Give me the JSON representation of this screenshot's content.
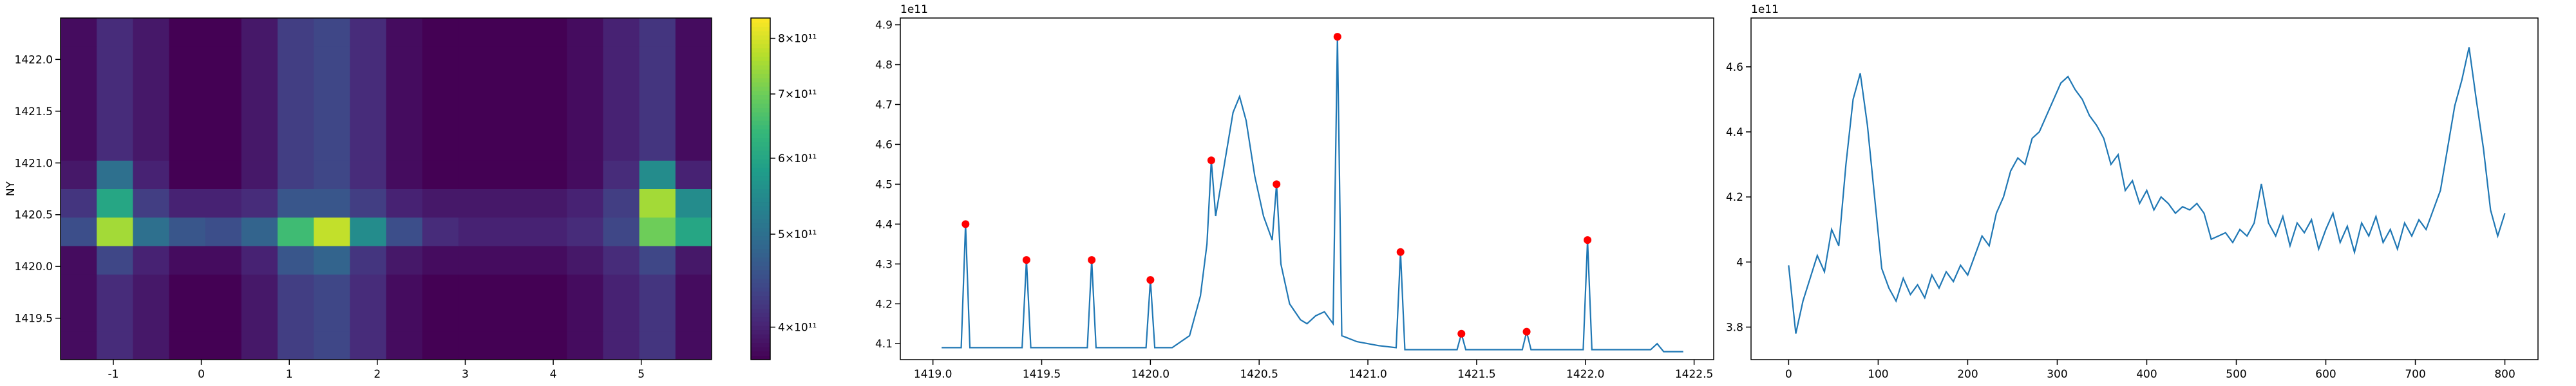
{
  "chart_data": [
    {
      "type": "heatmap",
      "ylabel": "NY",
      "xlim": [
        -1.6,
        5.8
      ],
      "ylim": [
        1419.1,
        1422.4
      ],
      "xticks": [
        -1,
        0,
        1,
        2,
        3,
        4,
        5
      ],
      "yticks": [
        {
          "value": 1419.5,
          "label": "1419.5"
        },
        {
          "value": 1420.0,
          "label": "1420.0"
        },
        {
          "value": 1420.5,
          "label": "1420.5"
        },
        {
          "value": 1421.0,
          "label": "1421.0"
        },
        {
          "value": 1421.5,
          "label": "1421.5"
        },
        {
          "value": 1422.0,
          "label": "1422.0"
        }
      ],
      "colormap": "viridis",
      "log_color": true,
      "clim": [
        370000000000.0,
        840000000000.0
      ],
      "cticks": [
        {
          "value": 400000000000.0,
          "label": "4×10¹¹"
        },
        {
          "value": 500000000000.0,
          "label": "5×10¹¹"
        },
        {
          "value": 600000000000.0,
          "label": "6×10¹¹"
        },
        {
          "value": 700000000000.0,
          "label": "7×10¹¹"
        },
        {
          "value": 800000000000.0,
          "label": "8×10¹¹"
        }
      ],
      "z": [
        [
          380000000000.0,
          410000000000.0,
          390000000000.0,
          370000000000.0,
          370000000000.0,
          390000000000.0,
          430000000000.0,
          440000000000.0,
          410000000000.0,
          380000000000.0,
          370000000000.0,
          370000000000.0,
          370000000000.0,
          370000000000.0,
          380000000000.0,
          400000000000.0,
          420000000000.0,
          380000000000.0
        ],
        [
          380000000000.0,
          410000000000.0,
          390000000000.0,
          370000000000.0,
          370000000000.0,
          390000000000.0,
          430000000000.0,
          440000000000.0,
          410000000000.0,
          380000000000.0,
          370000000000.0,
          370000000000.0,
          370000000000.0,
          370000000000.0,
          380000000000.0,
          400000000000.0,
          420000000000.0,
          380000000000.0
        ],
        [
          380000000000.0,
          410000000000.0,
          390000000000.0,
          370000000000.0,
          370000000000.0,
          390000000000.0,
          430000000000.0,
          440000000000.0,
          410000000000.0,
          380000000000.0,
          370000000000.0,
          370000000000.0,
          370000000000.0,
          370000000000.0,
          380000000000.0,
          400000000000.0,
          420000000000.0,
          380000000000.0
        ],
        [
          380000000000.0,
          440000000000.0,
          400000000000.0,
          380000000000.0,
          380000000000.0,
          400000000000.0,
          460000000000.0,
          480000000000.0,
          420000000000.0,
          390000000000.0,
          380000000000.0,
          380000000000.0,
          380000000000.0,
          380000000000.0,
          390000000000.0,
          410000000000.0,
          440000000000.0,
          390000000000.0
        ],
        [
          450000000000.0,
          750000000000.0,
          500000000000.0,
          460000000000.0,
          450000000000.0,
          480000000000.0,
          650000000000.0,
          780000000000.0,
          550000000000.0,
          450000000000.0,
          410000000000.0,
          400000000000.0,
          400000000000.0,
          400000000000.0,
          410000000000.0,
          440000000000.0,
          700000000000.0,
          600000000000.0
        ],
        [
          420000000000.0,
          600000000000.0,
          430000000000.0,
          400000000000.0,
          400000000000.0,
          410000000000.0,
          460000000000.0,
          460000000000.0,
          430000000000.0,
          400000000000.0,
          390000000000.0,
          390000000000.0,
          390000000000.0,
          390000000000.0,
          400000000000.0,
          430000000000.0,
          750000000000.0,
          550000000000.0
        ],
        [
          390000000000.0,
          500000000000.0,
          400000000000.0,
          370000000000.0,
          370000000000.0,
          390000000000.0,
          430000000000.0,
          440000000000.0,
          410000000000.0,
          380000000000.0,
          370000000000.0,
          370000000000.0,
          370000000000.0,
          370000000000.0,
          380000000000.0,
          410000000000.0,
          550000000000.0,
          400000000000.0
        ],
        [
          380000000000.0,
          410000000000.0,
          390000000000.0,
          370000000000.0,
          370000000000.0,
          390000000000.0,
          430000000000.0,
          440000000000.0,
          410000000000.0,
          380000000000.0,
          370000000000.0,
          370000000000.0,
          370000000000.0,
          370000000000.0,
          380000000000.0,
          400000000000.0,
          420000000000.0,
          380000000000.0
        ],
        [
          380000000000.0,
          410000000000.0,
          390000000000.0,
          370000000000.0,
          370000000000.0,
          390000000000.0,
          430000000000.0,
          440000000000.0,
          410000000000.0,
          380000000000.0,
          370000000000.0,
          370000000000.0,
          370000000000.0,
          370000000000.0,
          380000000000.0,
          400000000000.0,
          420000000000.0,
          380000000000.0
        ],
        [
          380000000000.0,
          410000000000.0,
          390000000000.0,
          370000000000.0,
          370000000000.0,
          390000000000.0,
          430000000000.0,
          440000000000.0,
          410000000000.0,
          380000000000.0,
          370000000000.0,
          370000000000.0,
          370000000000.0,
          370000000000.0,
          380000000000.0,
          400000000000.0,
          420000000000.0,
          380000000000.0
        ],
        [
          380000000000.0,
          410000000000.0,
          390000000000.0,
          370000000000.0,
          370000000000.0,
          390000000000.0,
          430000000000.0,
          440000000000.0,
          410000000000.0,
          380000000000.0,
          370000000000.0,
          370000000000.0,
          370000000000.0,
          370000000000.0,
          380000000000.0,
          400000000000.0,
          420000000000.0,
          380000000000.0
        ],
        [
          380000000000.0,
          410000000000.0,
          390000000000.0,
          370000000000.0,
          370000000000.0,
          390000000000.0,
          430000000000.0,
          440000000000.0,
          410000000000.0,
          380000000000.0,
          370000000000.0,
          370000000000.0,
          370000000000.0,
          370000000000.0,
          380000000000.0,
          400000000000.0,
          420000000000.0,
          380000000000.0
        ]
      ]
    },
    {
      "type": "line",
      "offset_label": "1e11",
      "color": "#1f77b4",
      "xlim": [
        1418.85,
        1422.59
      ],
      "ylim": [
        4.06,
        4.917
      ],
      "xticks": [
        {
          "value": 1419.0,
          "label": "1419.0"
        },
        1419.5,
        {
          "value": 1420.0,
          "label": "1420.0"
        },
        1420.5,
        {
          "value": 1421.0,
          "label": "1421.0"
        },
        1421.5,
        {
          "value": 1422.0,
          "label": "1422.0"
        },
        1422.5
      ],
      "yticks": [
        4.1,
        4.2,
        4.3,
        4.4,
        4.5,
        4.6,
        4.7,
        4.8,
        4.9
      ],
      "x": [
        1419.04,
        1419.13,
        1419.15,
        1419.17,
        1419.41,
        1419.43,
        1419.45,
        1419.71,
        1419.73,
        1419.75,
        1419.98,
        1420.0,
        1420.02,
        1420.1,
        1420.18,
        1420.23,
        1420.26,
        1420.28,
        1420.3,
        1420.34,
        1420.38,
        1420.41,
        1420.44,
        1420.48,
        1420.52,
        1420.56,
        1420.58,
        1420.6,
        1420.64,
        1420.69,
        1420.72,
        1420.76,
        1420.8,
        1420.84,
        1420.86,
        1420.88,
        1420.95,
        1421.05,
        1421.13,
        1421.15,
        1421.17,
        1421.41,
        1421.43,
        1421.45,
        1421.71,
        1421.73,
        1421.75,
        1421.99,
        1422.01,
        1422.03,
        1422.3,
        1422.33,
        1422.36,
        1422.45
      ],
      "values": [
        4.09,
        4.09,
        4.4,
        4.09,
        4.09,
        4.31,
        4.09,
        4.09,
        4.31,
        4.09,
        4.09,
        4.26,
        4.09,
        4.09,
        4.12,
        4.22,
        4.35,
        4.56,
        4.42,
        4.55,
        4.68,
        4.72,
        4.66,
        4.52,
        4.42,
        4.36,
        4.5,
        4.3,
        4.2,
        4.16,
        4.15,
        4.17,
        4.18,
        4.15,
        4.87,
        4.12,
        4.105,
        4.095,
        4.09,
        4.33,
        4.085,
        4.085,
        4.125,
        4.085,
        4.085,
        4.13,
        4.085,
        4.085,
        4.36,
        4.085,
        4.085,
        4.1,
        4.08,
        4.08
      ],
      "peaks": {
        "color": "#ff0000",
        "x": [
          1419.15,
          1419.43,
          1419.73,
          1420.0,
          1420.28,
          1420.58,
          1420.86,
          1421.15,
          1421.43,
          1421.73,
          1422.01
        ],
        "values": [
          4.4,
          4.31,
          4.31,
          4.26,
          4.56,
          4.5,
          4.87,
          4.33,
          4.125,
          4.13,
          4.36
        ]
      }
    },
    {
      "type": "line",
      "offset_label": "1e11",
      "color": "#1f77b4",
      "xlim": [
        -42,
        837
      ],
      "ylim": [
        3.7,
        4.75
      ],
      "xticks": [
        0,
        100,
        200,
        300,
        400,
        500,
        600,
        700,
        800
      ],
      "yticks": [
        3.8,
        4.0,
        4.2,
        4.4,
        4.6
      ],
      "x": [
        0,
        8,
        16,
        24,
        32,
        40,
        48,
        56,
        64,
        72,
        80,
        88,
        96,
        104,
        112,
        120,
        128,
        136,
        144,
        152,
        160,
        168,
        176,
        184,
        192,
        200,
        208,
        216,
        224,
        232,
        240,
        248,
        256,
        264,
        272,
        280,
        288,
        296,
        304,
        312,
        320,
        328,
        336,
        344,
        352,
        360,
        368,
        376,
        384,
        392,
        400,
        408,
        416,
        424,
        432,
        440,
        448,
        456,
        464,
        472,
        480,
        488,
        496,
        504,
        512,
        520,
        528,
        536,
        544,
        552,
        560,
        568,
        576,
        584,
        592,
        600,
        608,
        616,
        624,
        632,
        640,
        648,
        656,
        664,
        672,
        680,
        688,
        696,
        704,
        712,
        720,
        728,
        736,
        744,
        752,
        760,
        768,
        776,
        784,
        792,
        800
      ],
      "values": [
        3.99,
        3.78,
        3.88,
        3.95,
        4.02,
        3.97,
        4.1,
        4.05,
        4.3,
        4.5,
        4.58,
        4.42,
        4.2,
        3.98,
        3.92,
        3.88,
        3.95,
        3.9,
        3.93,
        3.89,
        3.96,
        3.92,
        3.97,
        3.94,
        3.99,
        3.96,
        4.02,
        4.08,
        4.05,
        4.15,
        4.2,
        4.28,
        4.32,
        4.3,
        4.38,
        4.4,
        4.45,
        4.5,
        4.55,
        4.57,
        4.53,
        4.5,
        4.45,
        4.42,
        4.38,
        4.3,
        4.33,
        4.22,
        4.25,
        4.18,
        4.22,
        4.16,
        4.2,
        4.18,
        4.15,
        4.17,
        4.16,
        4.18,
        4.15,
        4.07,
        4.08,
        4.09,
        4.06,
        4.1,
        4.08,
        4.12,
        4.24,
        4.12,
        4.08,
        4.14,
        4.05,
        4.12,
        4.09,
        4.13,
        4.04,
        4.1,
        4.15,
        4.06,
        4.11,
        4.03,
        4.12,
        4.08,
        4.14,
        4.06,
        4.1,
        4.04,
        4.12,
        4.08,
        4.13,
        4.1,
        4.16,
        4.22,
        4.35,
        4.48,
        4.56,
        4.66,
        4.5,
        4.35,
        4.16,
        4.08,
        4.15
      ]
    }
  ]
}
